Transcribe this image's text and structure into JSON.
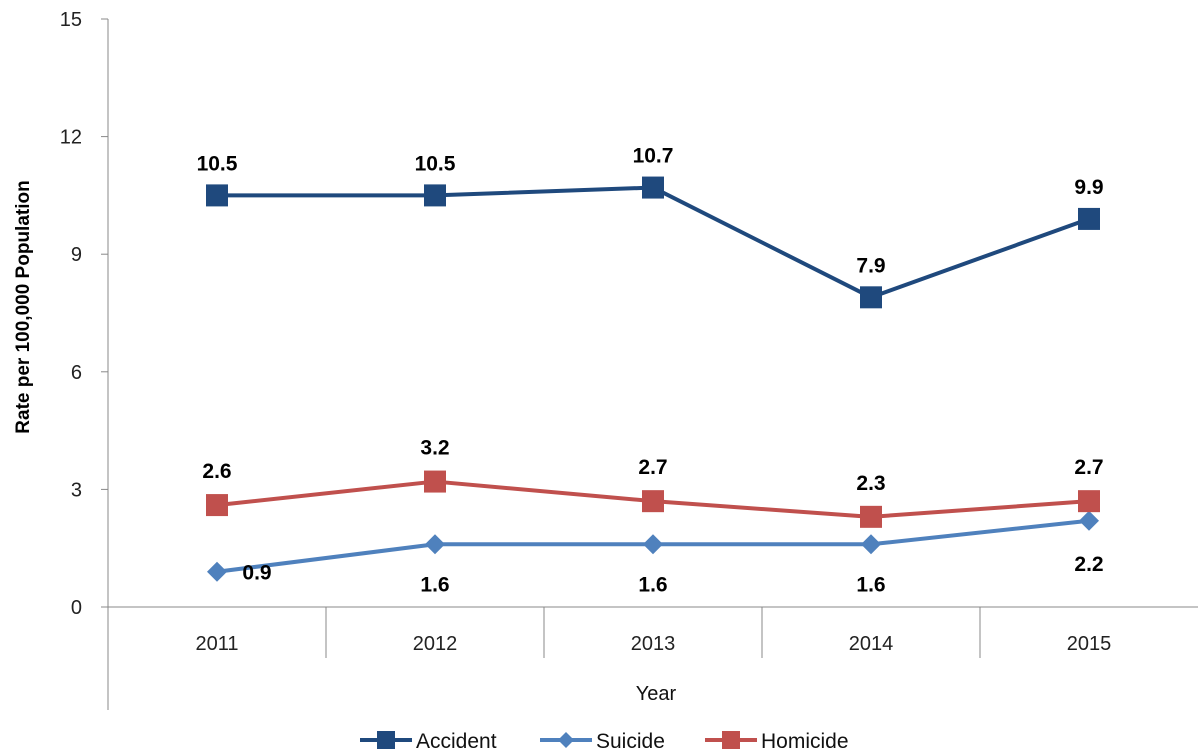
{
  "chart_data": {
    "type": "line",
    "categories": [
      "2011",
      "2012",
      "2013",
      "2014",
      "2015"
    ],
    "xlabel": "Year",
    "ylabel": "Rate per 100,000 Population",
    "ylim": [
      0,
      15
    ],
    "yticks": [
      0,
      3,
      6,
      9,
      12,
      15
    ],
    "grid": false,
    "legend_position": "bottom",
    "series": [
      {
        "name": "Accident",
        "color": "#1f497d",
        "marker": "square",
        "values": [
          10.5,
          10.5,
          10.7,
          7.9,
          9.9
        ],
        "labels": [
          "10.5",
          "10.5",
          "10.7",
          "7.9",
          "9.9"
        ]
      },
      {
        "name": "Suicide",
        "color": "#4f81bd",
        "marker": "diamond",
        "values": [
          0.9,
          1.6,
          1.6,
          1.6,
          2.2
        ],
        "labels": [
          "0.9",
          "1.6",
          "1.6",
          "1.6",
          "2.2"
        ]
      },
      {
        "name": "Homicide",
        "color": "#c0504d",
        "marker": "square",
        "values": [
          2.6,
          3.2,
          2.7,
          2.3,
          2.7
        ],
        "labels": [
          "2.6",
          "3.2",
          "2.7",
          "2.3",
          "2.7"
        ]
      }
    ]
  }
}
